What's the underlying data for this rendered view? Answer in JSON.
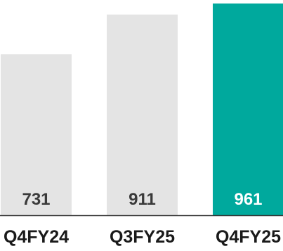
{
  "chart_data": {
    "type": "bar",
    "categories": [
      "Q4FY24",
      "Q3FY25",
      "Q4FY25"
    ],
    "values": [
      731,
      911,
      961
    ],
    "title": "",
    "xlabel": "",
    "ylabel": "",
    "ylim": [
      0,
      961
    ],
    "grid": false,
    "legend": "none",
    "colors": {
      "default_bar": "#e4e4e4",
      "highlight_bar": "#00a99d",
      "label_dark": "#3a3a3a",
      "label_light": "#ffffff",
      "baseline": "#333333"
    },
    "highlight_index": 2
  }
}
